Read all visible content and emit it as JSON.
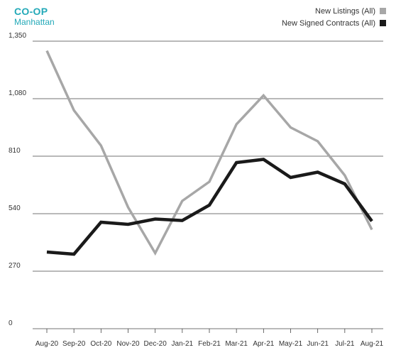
{
  "header": {
    "title": "CO-OP",
    "subtitle": "Manhattan"
  },
  "legend": [
    {
      "label": "New Listings (All)",
      "color": "#a7a7a7"
    },
    {
      "label": "New Signed Contracts (All)",
      "color": "#1a1a1a"
    }
  ],
  "chart_data": {
    "type": "line",
    "categories": [
      "Aug-20",
      "Sep-20",
      "Oct-20",
      "Nov-20",
      "Dec-20",
      "Jan-21",
      "Feb-21",
      "Mar-21",
      "Apr-21",
      "May-21",
      "Jun-21",
      "Jul-21",
      "Aug-21"
    ],
    "series": [
      {
        "name": "New Listings (All)",
        "color": "#a7a7a7",
        "values": [
          1305,
          1025,
          860,
          570,
          355,
          600,
          690,
          960,
          1095,
          945,
          880,
          720,
          465
        ]
      },
      {
        "name": "New Signed Contracts (All)",
        "color": "#1a1a1a",
        "values": [
          360,
          350,
          500,
          490,
          515,
          508,
          580,
          780,
          795,
          710,
          735,
          680,
          505
        ]
      }
    ],
    "yticks": [
      "0",
      "270",
      "540",
      "810",
      "1,080",
      "1,350"
    ],
    "ylim": [
      0,
      1350
    ],
    "grid": true,
    "legend_position": "top-right"
  }
}
